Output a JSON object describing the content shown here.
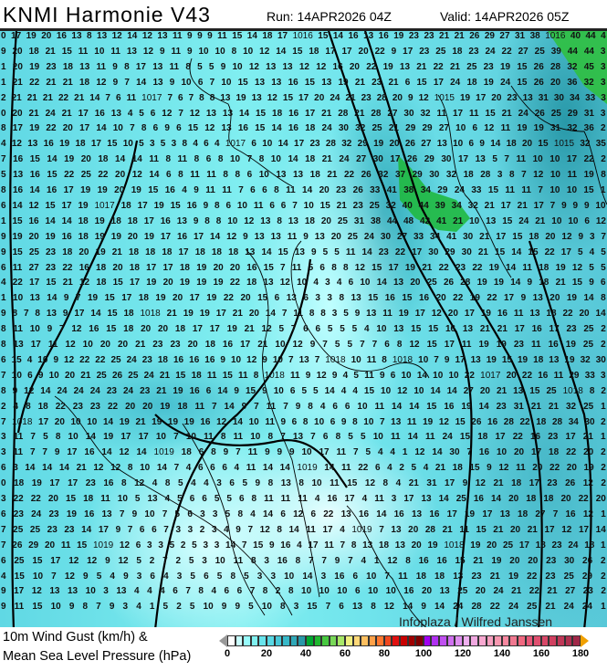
{
  "header": {
    "title": "KNMI Harmonie V43",
    "run": "Run: 14APR2026 04Z",
    "valid": "Valid: 14APR2026 05Z"
  },
  "map": {
    "rows": [
      "0 17 19 20 16 13 8 13 12 14 12 13 11 9 9 9 11 15 14 18 17 15 14 16 13 16 19 23 23 21 21 26 29 27 31 38 40 44 4",
      "9 20 18 21 15 11 10 11 13 12 9 11 9 10 10 8 10 12 14 15 18 17 17 20 22 9 17 23 25 18 23 24 22 27 25 39 44 44 3",
      "1 20 19 23 18 13 11 9 8 17 13 11 8 5 5 9 10 12 13 13 12 12 16 20 22 19 13 21 22 21 25 23 19 15 26 28 32 45 3",
      "1 21 22 21 21 18 12 9 7 14 13 9 10 6 7 10 15 13 13 16 15 13 19 21 23 21 6 15 17 24 18 19 24 15 26 20 36 32 3",
      "2 21 21 21 22 21 14 7 6 11 7 6 7 8 8 13 19 13 12 15 17 20 24 21 23 28 20 9 12 19 17 20 23 13 31 30 34 33 3",
      "0 20 21 24 21 17 16 13 4 5 6 12 7 12 13 13 14 15 18 16 17 21 28 21 28 27 30 32 11 17 11 15 21 24 26 25 29 31 3",
      "8 17 19 22 20 17 14 10 7 8 6 9 6 15 12 13 16 15 14 16 18 24 30 32 25 21 29 29 27 10 6 12 11 19 19 31 32 36 2",
      "4 12 13 16 19 18 17 15 10 5 3 5 3 8 4 6 4 6 10 14 17 23 28 32 29 19 20 26 27 13 10 6 9 14 18 20 15 32 35",
      "7 16 15 14 19 20 18 14 14 11 8 11 8 6 8 10 7 8 10 14 18 21 24 27 30 17 26 29 30 17 13 5 7 11 10 10 17 22 2",
      "5 13 16 15 22 25 22 20 12 14 6 8 11 11 8 8 6 10 13 13 18 21 22 26 32 37 29 30 32 18 28 3 8 7 12 10 11 19 8",
      "8 16 14 16 17 19 19 20 19 15 16 4 9 11 11 7 6 6 8 11 14 20 23 26 33 41 38 34 29 24 33 15 11 11 7 10 10 15 1",
      "6 14 12 15 17 19 18 17 19 15 16 9 8 6 10 11 6 6 7 10 15 21 23 25 32 40 44 39 34 32 21 17 21 17 7 9 9 9 10",
      "1 15 16 14 14 18 19 18 18 17 16 13 9 8 8 10 12 13 8 13 18 20 25 31 38 44 48 42 41 21 10 13 15 24 21 10 10 6 12",
      "9 19 20 19 16 18 19 19 20 19 17 16 17 14 12 9 13 13 11 9 13 20 25 24 30 27 33 34 41 30 21 17 15 18 20 12 9 3 7",
      "9 15 25 23 18 20 19 21 18 18 18 17 18 18 18 13 14 15 13 9 5 5 11 14 23 22 17 30 29 30 21 15 14 15 22 17 5 4 5",
      "6 11 27 23 22 16 18 20 18 17 17 18 19 20 20 16 15 7 11 5 6 8 8 12 15 17 19 21 22 23 22 19 14 11 18 19 12 5 5",
      "4 22 17 15 21 12 18 15 17 19 20 19 19 19 22 18 13 12 10 4 3 4 6 10 14 13 20 25 26 28 19 19 14 9 18 21 15 9 6",
      "1 10 13 14 9 7 19 15 17 18 19 20 17 19 22 20 15 6 13 6 3 3 8 13 15 16 15 16 20 22 19 22 17 9 13 20 19 14 8",
      "9 8 7 8 13 9 17 14 15 18 21 19 19 17 21 20 14 7 11 8 8 3 5 9 13 11 19 17 12 20 17 19 16 11 13 18 22 20 14",
      "8 11 10 9 7 12 16 15 18 20 20 18 17 17 19 21 12 5 7 6 6 5 5 5 4 10 13 15 15 16 13 21 21 17 16 17 23 25 2",
      "8 13 17 11 12 10 20 20 21 23 23 20 18 16 17 21 10 12 9 7 5 5 7 7 6 8 12 15 17 11 19 19 23 11 16 19 25 2",
      "6 15 4 10 9 12 22 22 25 24 23 18 16 16 16 9 10 12 9 10 7 13 7 10 11 8 10 7 9 17 13 19 15 19 18 13 19 32 30",
      "7 10 6 9 10 20 21 25 26 25 24 21 15 18 11 15 11 8 11 9 12 9 4 5 11 9 6 10 14 10 10 22 20 22 16 11 29 33 3",
      "8 9 12 14 24 24 24 23 24 23 21 19 16 6 14 9 15 9 10 6 5 5 14 4 4 15 10 12 10 14 14 27 20 21 13 15 25 8 2",
      "2 4 8 18 22 23 23 22 20 20 19 18 11 7 14 9 7 11 7 9 8 4 6 6 10 11 14 14 15 16 19 14 23 31 21 21 32 25 1",
      "7 17 20 10 10 14 19 21 19 19 19 16 12 14 10 11 9 6 8 10 6 9 8 10 7 13 11 19 12 15 26 16 28 22 18 28 34 30 2",
      "3 11 7 5 8 10 14 19 17 17 10 7 10 11 8 11 10 8 7 13 7 6 8 5 5 10 11 14 11 24 15 18 17 22 16 23 17 21 1",
      "3 11 7 7 9 17 16 14 12 14 18 6 8 9 7 11 9 9 9 10 17 11 7 5 4 4 1 12 14 30 7 16 10 20 17 18 22 20 2",
      "6 3 14 14 14 21 12 12 8 10 14 7 4 6 6 6 4 11 14 14 14 11 22 6 4 2 5 4 21 18 15 9 12 11 20 22 20 19 2",
      "0 18 19 17 17 23 16 8 12 4 8 5 4 4 3 6 5 9 8 13 8 10 11 15 12 8 4 21 31 17 9 12 21 18 17 23 26 12 2",
      "3 22 22 20 15 18 11 10 5 13 4 5 6 6 5 5 6 8 11 11 11 4 16 17 4 11 3 17 13 14 25 16 14 20 18 18 20 22 20",
      "6 23 24 23 19 16 13 7 9 10 7 5 6 3 3 5 8 4 14 6 12 6 22 13 16 14 16 13 16 17 19 17 13 18 27 7 16 12 1",
      "7 25 25 23 23 14 17 9 7 6 6 7 3 3 2 3 4 9 7 12 8 14 11 17 4 7 13 20 28 21 11 15 21 20 21 17 12 17 14",
      "7 26 29 20 11 15 12 6 3 3 5 2 5 3 3 14 7 15 9 16 4 17 11 7 8 13 18 13 20 19 19 20 25 17 18 23 24 18 1",
      "6 25 15 17 12 12 9 12 5 2 7 2 5 3 10 11 8 3 16 8 7 7 9 7 4 1 12 8 16 16 15 21 19 20 20 23 30 26 2",
      "4 15 10 7 12 9 5 4 9 3 6 4 3 5 6 5 8 5 3 3 10 14 3 16 6 10 7 11 18 18 13 23 21 19 22 23 25 29 2",
      "9 17 12 13 13 10 3 13 4 4 4 6 7 8 4 6 6 7 8 2 8 10 10 10 6 10 10 16 20 13 25 20 24 21 22 21 27 23 2",
      "9 11 15 10 9 8 7 9 3 4 1 5 2 5 10 9 9 5 10 8 3 15 7 6 13 8 12 14 9 14 24 28 22 24 25 21 24 24 1"
    ],
    "isobar_labels": [
      "1016",
      "1016",
      "1017",
      "1015",
      "1017",
      "1015",
      "1017",
      "1018",
      "1018",
      "1018",
      "1018",
      "1017",
      "1018",
      "1018",
      "1019",
      "1019",
      "1019",
      "1019",
      "1018"
    ],
    "credit": "Infoplaza / Wilfred Janssen"
  },
  "legend": {
    "line1": "10m Wind Gust (km/h) &",
    "line2": "Mean Sea Level Pressure (hPa)",
    "ticks": [
      "0",
      "20",
      "40",
      "60",
      "80",
      "100",
      "120",
      "140",
      "160",
      "180"
    ],
    "range": [
      0,
      180
    ],
    "step": 4,
    "colors": [
      "#ffffff",
      "#c8ffff",
      "#98fcfc",
      "#80f0f0",
      "#68e4ec",
      "#58d8e4",
      "#48c8d8",
      "#38b8c8",
      "#30a8b8",
      "#2898a8",
      "#00a830",
      "#20b830",
      "#48c840",
      "#78d858",
      "#a8e868",
      "#f0f080",
      "#ffd878",
      "#ffc060",
      "#ffa048",
      "#ff7830",
      "#f04820",
      "#e01010",
      "#c80000",
      "#a00000",
      "#800000",
      "#a000f0",
      "#b030f0",
      "#c050f0",
      "#d070f0",
      "#e090f0",
      "#f0b0f0",
      "#f0a8e0",
      "#f8a8d0",
      "#f8a0c0",
      "#f898b0",
      "#f888a0",
      "#f07890",
      "#f06880",
      "#e85878",
      "#e05070",
      "#d84868",
      "#d04060",
      "#c03858",
      "#b03050",
      "#a02848"
    ],
    "under_color": "#999999",
    "over_color": "#f0a000"
  }
}
